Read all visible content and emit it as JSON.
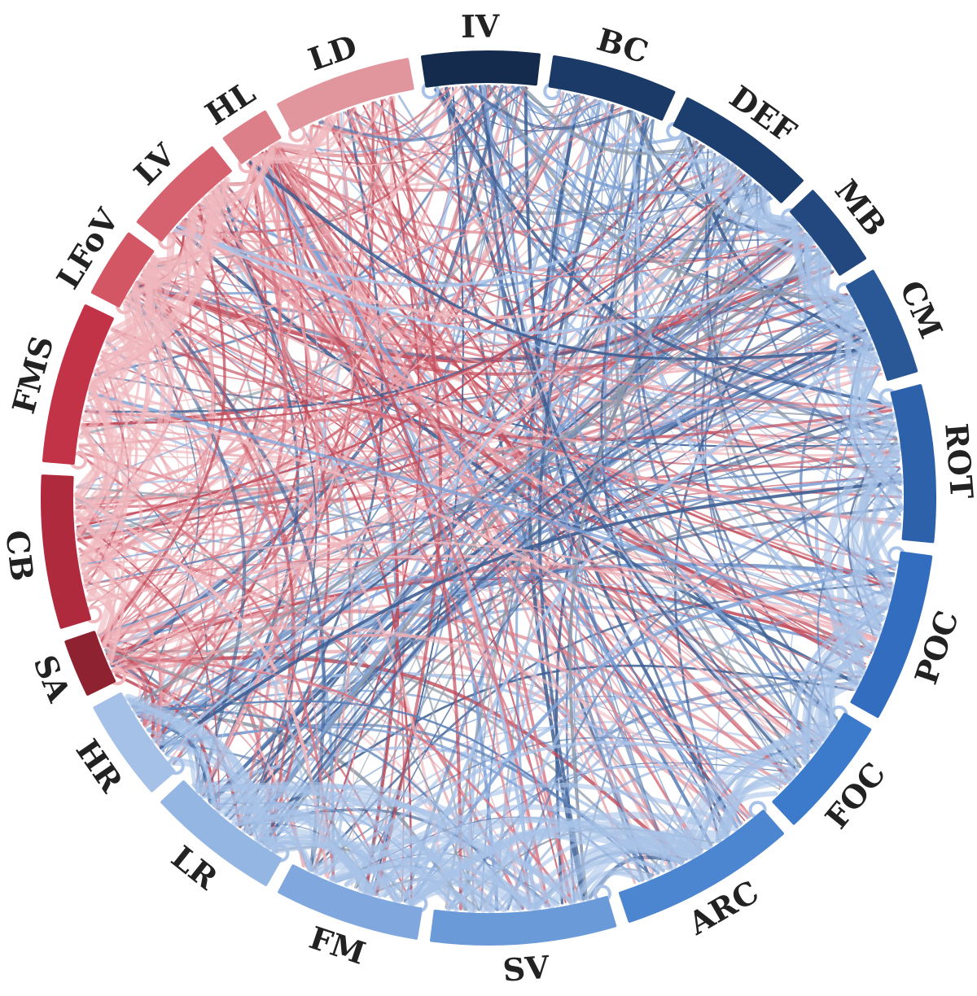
{
  "diagram": {
    "type": "chord",
    "segments": [
      {
        "id": "IV",
        "label": "IV",
        "color": "#142b4e",
        "side": "blue"
      },
      {
        "id": "BC",
        "label": "BC",
        "color": "#1b3a67",
        "side": "blue"
      },
      {
        "id": "DEF",
        "label": "DEF",
        "color": "#1d3f70",
        "side": "blue"
      },
      {
        "id": "MB",
        "label": "MB",
        "color": "#22487f",
        "side": "blue"
      },
      {
        "id": "CM",
        "label": "CM",
        "color": "#2a5896",
        "side": "blue"
      },
      {
        "id": "ROT",
        "label": "ROT",
        "color": "#2d62ab",
        "side": "blue"
      },
      {
        "id": "POC",
        "label": "POC",
        "color": "#336dbf",
        "side": "blue"
      },
      {
        "id": "FOC",
        "label": "FOC",
        "color": "#3c7acb",
        "side": "blue"
      },
      {
        "id": "ARC",
        "label": "ARC",
        "color": "#4c85d0",
        "side": "blue"
      },
      {
        "id": "SV",
        "label": "SV",
        "color": "#6b9ad8",
        "side": "blue"
      },
      {
        "id": "FM",
        "label": "FM",
        "color": "#80a8de",
        "side": "blue"
      },
      {
        "id": "LR",
        "label": "LR",
        "color": "#94b6e3",
        "side": "blue"
      },
      {
        "id": "HR",
        "label": "HR",
        "color": "#a6c1e7",
        "side": "blue"
      },
      {
        "id": "SA",
        "label": "SA",
        "color": "#8e2231",
        "side": "red"
      },
      {
        "id": "CB",
        "label": "CB",
        "color": "#b02a3e",
        "side": "red"
      },
      {
        "id": "FMS",
        "label": "FMS",
        "color": "#c23347",
        "side": "red"
      },
      {
        "id": "LFoV",
        "label": "LFoV",
        "color": "#d35664",
        "side": "red"
      },
      {
        "id": "LV",
        "label": "LV",
        "color": "#d6626f",
        "side": "red"
      },
      {
        "id": "HL",
        "label": "HL",
        "color": "#dc7f89",
        "side": "red"
      },
      {
        "id": "LD",
        "label": "LD",
        "color": "#e1959d",
        "side": "red"
      }
    ],
    "ribbon_palette": {
      "blue": [
        "#a9c3e8",
        "#7fa2d6",
        "#5a7fb6",
        "#3f5f93",
        "#8d99a8"
      ],
      "red": [
        "#e8a2aa",
        "#d97683",
        "#c24d5c",
        "#efb9bf"
      ]
    }
  }
}
